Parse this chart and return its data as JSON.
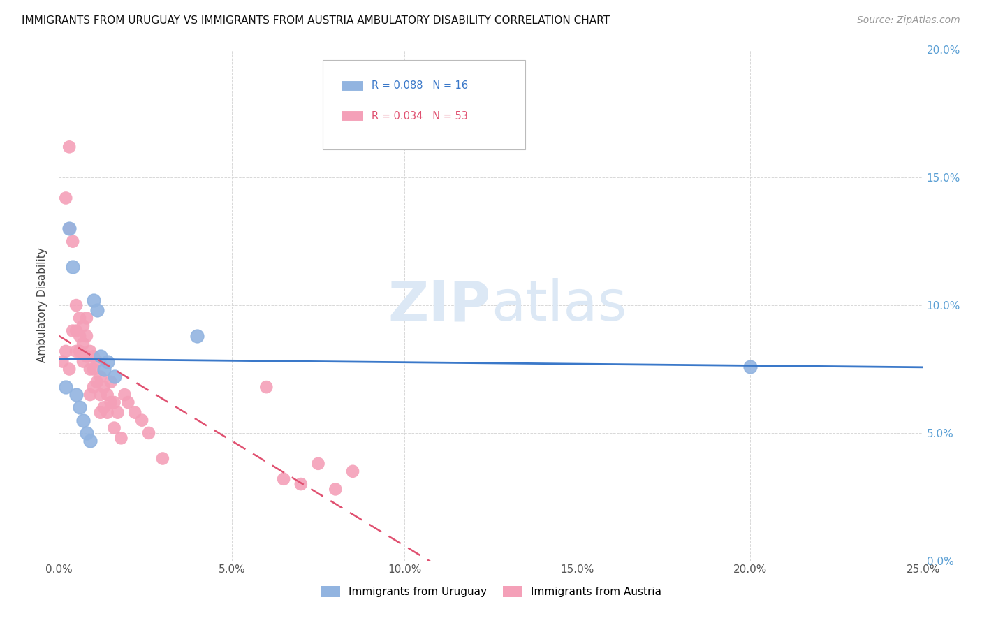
{
  "title": "IMMIGRANTS FROM URUGUAY VS IMMIGRANTS FROM AUSTRIA AMBULATORY DISABILITY CORRELATION CHART",
  "source": "Source: ZipAtlas.com",
  "ylabel": "Ambulatory Disability",
  "xlim": [
    0.0,
    0.25
  ],
  "ylim": [
    0.0,
    0.2
  ],
  "xticks": [
    0.0,
    0.05,
    0.1,
    0.15,
    0.2,
    0.25
  ],
  "yticks": [
    0.0,
    0.05,
    0.1,
    0.15,
    0.2
  ],
  "uruguay_color": "#92b4e0",
  "austria_color": "#f4a0b8",
  "uruguay_line_color": "#3a78c9",
  "austria_line_color": "#e05070",
  "uruguay_label": "Immigrants from Uruguay",
  "austria_label": "Immigrants from Austria",
  "watermark_color": "#dce8f5",
  "grid_color": "#d8d8d8",
  "right_tick_color": "#5a9fd4",
  "uruguay_x": [
    0.002,
    0.003,
    0.004,
    0.005,
    0.006,
    0.007,
    0.008,
    0.009,
    0.01,
    0.011,
    0.012,
    0.013,
    0.014,
    0.016,
    0.04,
    0.2
  ],
  "uruguay_y": [
    0.068,
    0.13,
    0.115,
    0.065,
    0.06,
    0.055,
    0.05,
    0.047,
    0.102,
    0.098,
    0.08,
    0.075,
    0.078,
    0.072,
    0.088,
    0.076
  ],
  "austria_x": [
    0.001,
    0.002,
    0.002,
    0.003,
    0.003,
    0.003,
    0.004,
    0.004,
    0.005,
    0.005,
    0.005,
    0.006,
    0.006,
    0.006,
    0.007,
    0.007,
    0.007,
    0.008,
    0.008,
    0.008,
    0.009,
    0.009,
    0.009,
    0.01,
    0.01,
    0.01,
    0.011,
    0.011,
    0.012,
    0.012,
    0.012,
    0.013,
    0.013,
    0.014,
    0.014,
    0.015,
    0.015,
    0.016,
    0.016,
    0.017,
    0.018,
    0.019,
    0.02,
    0.022,
    0.024,
    0.026,
    0.03,
    0.06,
    0.065,
    0.07,
    0.075,
    0.08,
    0.085
  ],
  "austria_y": [
    0.078,
    0.142,
    0.082,
    0.162,
    0.13,
    0.075,
    0.125,
    0.09,
    0.1,
    0.09,
    0.082,
    0.095,
    0.088,
    0.082,
    0.092,
    0.085,
    0.078,
    0.095,
    0.088,
    0.08,
    0.082,
    0.075,
    0.065,
    0.08,
    0.075,
    0.068,
    0.078,
    0.07,
    0.072,
    0.065,
    0.058,
    0.068,
    0.06,
    0.065,
    0.058,
    0.07,
    0.062,
    0.062,
    0.052,
    0.058,
    0.048,
    0.065,
    0.062,
    0.058,
    0.055,
    0.05,
    0.04,
    0.068,
    0.032,
    0.03,
    0.038,
    0.028,
    0.035
  ]
}
